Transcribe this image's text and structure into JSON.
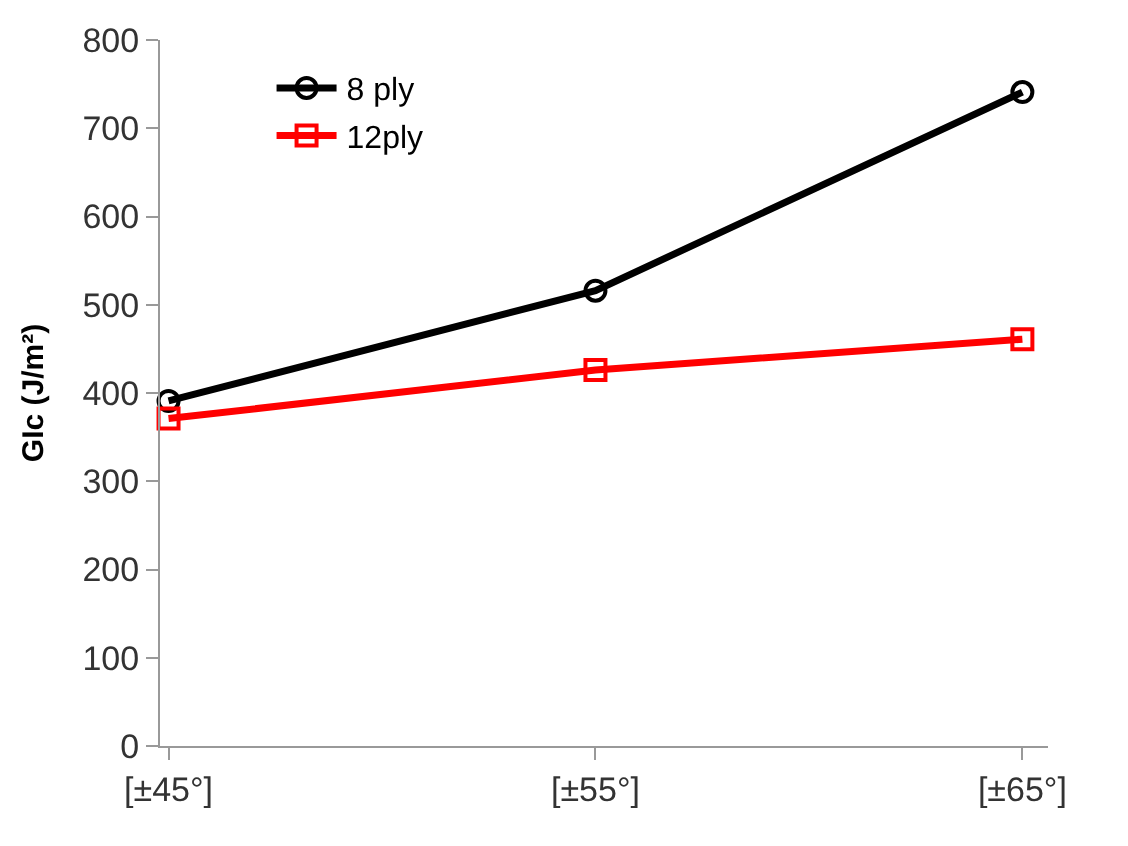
{
  "chart_data": {
    "type": "line",
    "ylabel": "GIc (J/m²)",
    "categories": [
      "[±45°]",
      "[±55°]",
      "[±65°]"
    ],
    "series": [
      {
        "name": "8 ply",
        "color": "#000000",
        "values": [
          391,
          516,
          741
        ],
        "marker": "circle"
      },
      {
        "name": "12ply",
        "color": "#ff0000",
        "values": [
          371,
          426,
          461
        ],
        "marker": "square"
      }
    ],
    "ylim": [
      0,
      800
    ],
    "yticks": [
      0,
      100,
      200,
      300,
      400,
      500,
      600,
      700,
      800
    ],
    "legend": "top left",
    "line_style": "solid"
  }
}
